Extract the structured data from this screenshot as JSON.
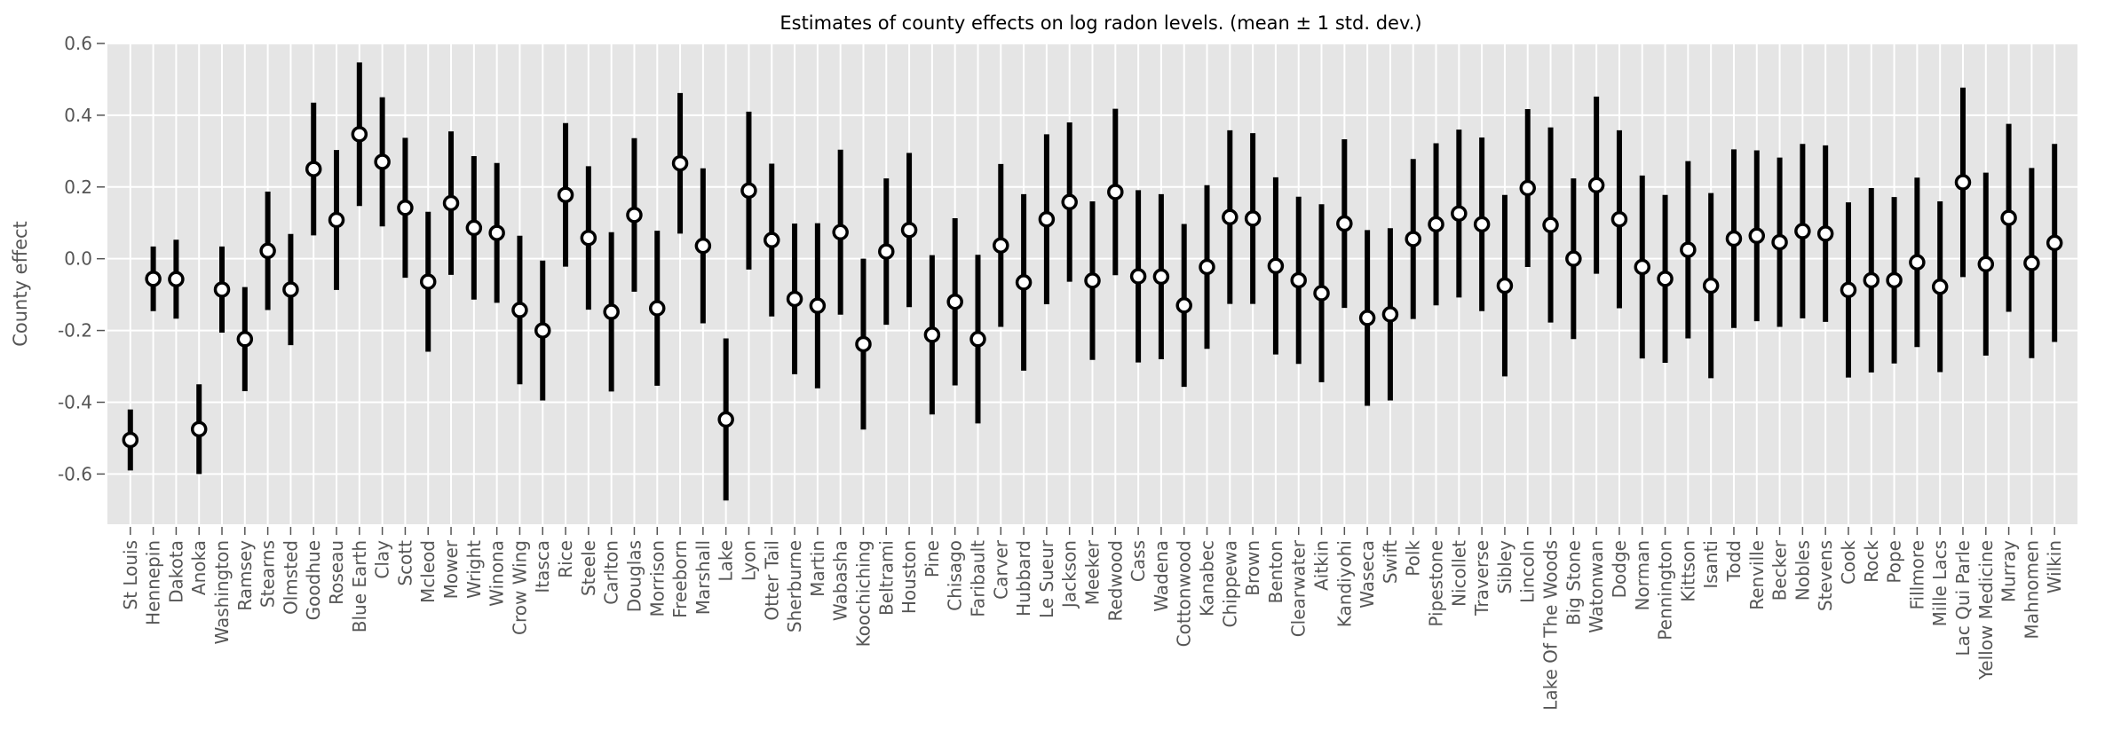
{
  "chart_data": {
    "type": "errorbar",
    "title": "Estimates of county effects on log radon levels. (mean ± 1 std. dev.)",
    "xlabel": "",
    "ylabel": "County effect",
    "ylim": [
      -0.74,
      0.6
    ],
    "yticks": [
      -0.6,
      -0.4,
      -0.2,
      0.0,
      0.2,
      0.4,
      0.6
    ],
    "grid": true,
    "background": "#e5e5e5",
    "marker_color": "#000000",
    "marker_fill": "#ffffff",
    "categories": [
      "St Louis",
      "Hennepin",
      "Dakota",
      "Anoka",
      "Washington",
      "Ramsey",
      "Stearns",
      "Olmsted",
      "Goodhue",
      "Roseau",
      "Blue Earth",
      "Clay",
      "Scott",
      "Mcleod",
      "Mower",
      "Wright",
      "Winona",
      "Crow Wing",
      "Itasca",
      "Rice",
      "Steele",
      "Carlton",
      "Douglas",
      "Morrison",
      "Freeborn",
      "Marshall",
      "Lake",
      "Lyon",
      "Otter Tail",
      "Sherburne",
      "Martin",
      "Wabasha",
      "Koochiching",
      "Beltrami",
      "Houston",
      "Pine",
      "Chisago",
      "Faribault",
      "Carver",
      "Hubbard",
      "Le Sueur",
      "Jackson",
      "Meeker",
      "Redwood",
      "Cass",
      "Wadena",
      "Cottonwood",
      "Kanabec",
      "Chippewa",
      "Brown",
      "Benton",
      "Clearwater",
      "Aitkin",
      "Kandiyohi",
      "Waseca",
      "Swift",
      "Polk",
      "Pipestone",
      "Nicollet",
      "Traverse",
      "Sibley",
      "Lincoln",
      "Lake Of The Woods",
      "Big Stone",
      "Watonwan",
      "Dodge",
      "Norman",
      "Pennington",
      "Kittson",
      "Isanti",
      "Todd",
      "Renville",
      "Becker",
      "Nobles",
      "Stevens",
      "Cook",
      "Rock",
      "Pope",
      "Fillmore",
      "Mille Lacs",
      "Lac Qui Parle",
      "Yellow Medicine",
      "Murray",
      "Mahnomen",
      "Wilkin"
    ],
    "mean": [
      -0.505,
      -0.056,
      -0.057,
      -0.475,
      -0.086,
      -0.224,
      0.022,
      -0.086,
      0.25,
      0.108,
      0.347,
      0.27,
      0.142,
      -0.064,
      0.155,
      0.086,
      0.072,
      -0.143,
      -0.2,
      0.178,
      0.058,
      -0.148,
      0.122,
      -0.138,
      0.266,
      0.036,
      -0.448,
      0.19,
      0.052,
      -0.112,
      -0.131,
      0.074,
      -0.238,
      0.02,
      0.08,
      -0.212,
      -0.12,
      -0.224,
      0.037,
      -0.066,
      0.11,
      0.158,
      -0.061,
      0.186,
      -0.049,
      -0.05,
      -0.13,
      -0.023,
      0.116,
      0.112,
      -0.02,
      -0.06,
      -0.096,
      0.098,
      -0.165,
      -0.155,
      0.055,
      0.096,
      0.126,
      0.096,
      -0.075,
      0.197,
      0.094,
      0.0,
      0.205,
      0.11,
      -0.023,
      -0.056,
      0.025,
      -0.075,
      0.056,
      0.064,
      0.046,
      0.077,
      0.07,
      -0.087,
      -0.06,
      -0.06,
      -0.01,
      -0.078,
      0.213,
      -0.015,
      0.114,
      -0.012,
      0.044
    ],
    "std": [
      0.085,
      0.09,
      0.11,
      0.125,
      0.12,
      0.145,
      0.165,
      0.155,
      0.185,
      0.195,
      0.2,
      0.18,
      0.195,
      0.195,
      0.2,
      0.2,
      0.195,
      0.207,
      0.195,
      0.2,
      0.2,
      0.222,
      0.214,
      0.216,
      0.196,
      0.216,
      0.226,
      0.22,
      0.213,
      0.21,
      0.23,
      0.23,
      0.238,
      0.204,
      0.215,
      0.222,
      0.233,
      0.235,
      0.227,
      0.246,
      0.237,
      0.222,
      0.221,
      0.232,
      0.24,
      0.23,
      0.227,
      0.228,
      0.242,
      0.238,
      0.247,
      0.233,
      0.248,
      0.235,
      0.245,
      0.24,
      0.223,
      0.226,
      0.234,
      0.242,
      0.253,
      0.22,
      0.272,
      0.224,
      0.247,
      0.248,
      0.255,
      0.234,
      0.247,
      0.258,
      0.249,
      0.238,
      0.236,
      0.243,
      0.246,
      0.244,
      0.257,
      0.232,
      0.236,
      0.238,
      0.264,
      0.255,
      0.262,
      0.265,
      0.276
    ]
  }
}
